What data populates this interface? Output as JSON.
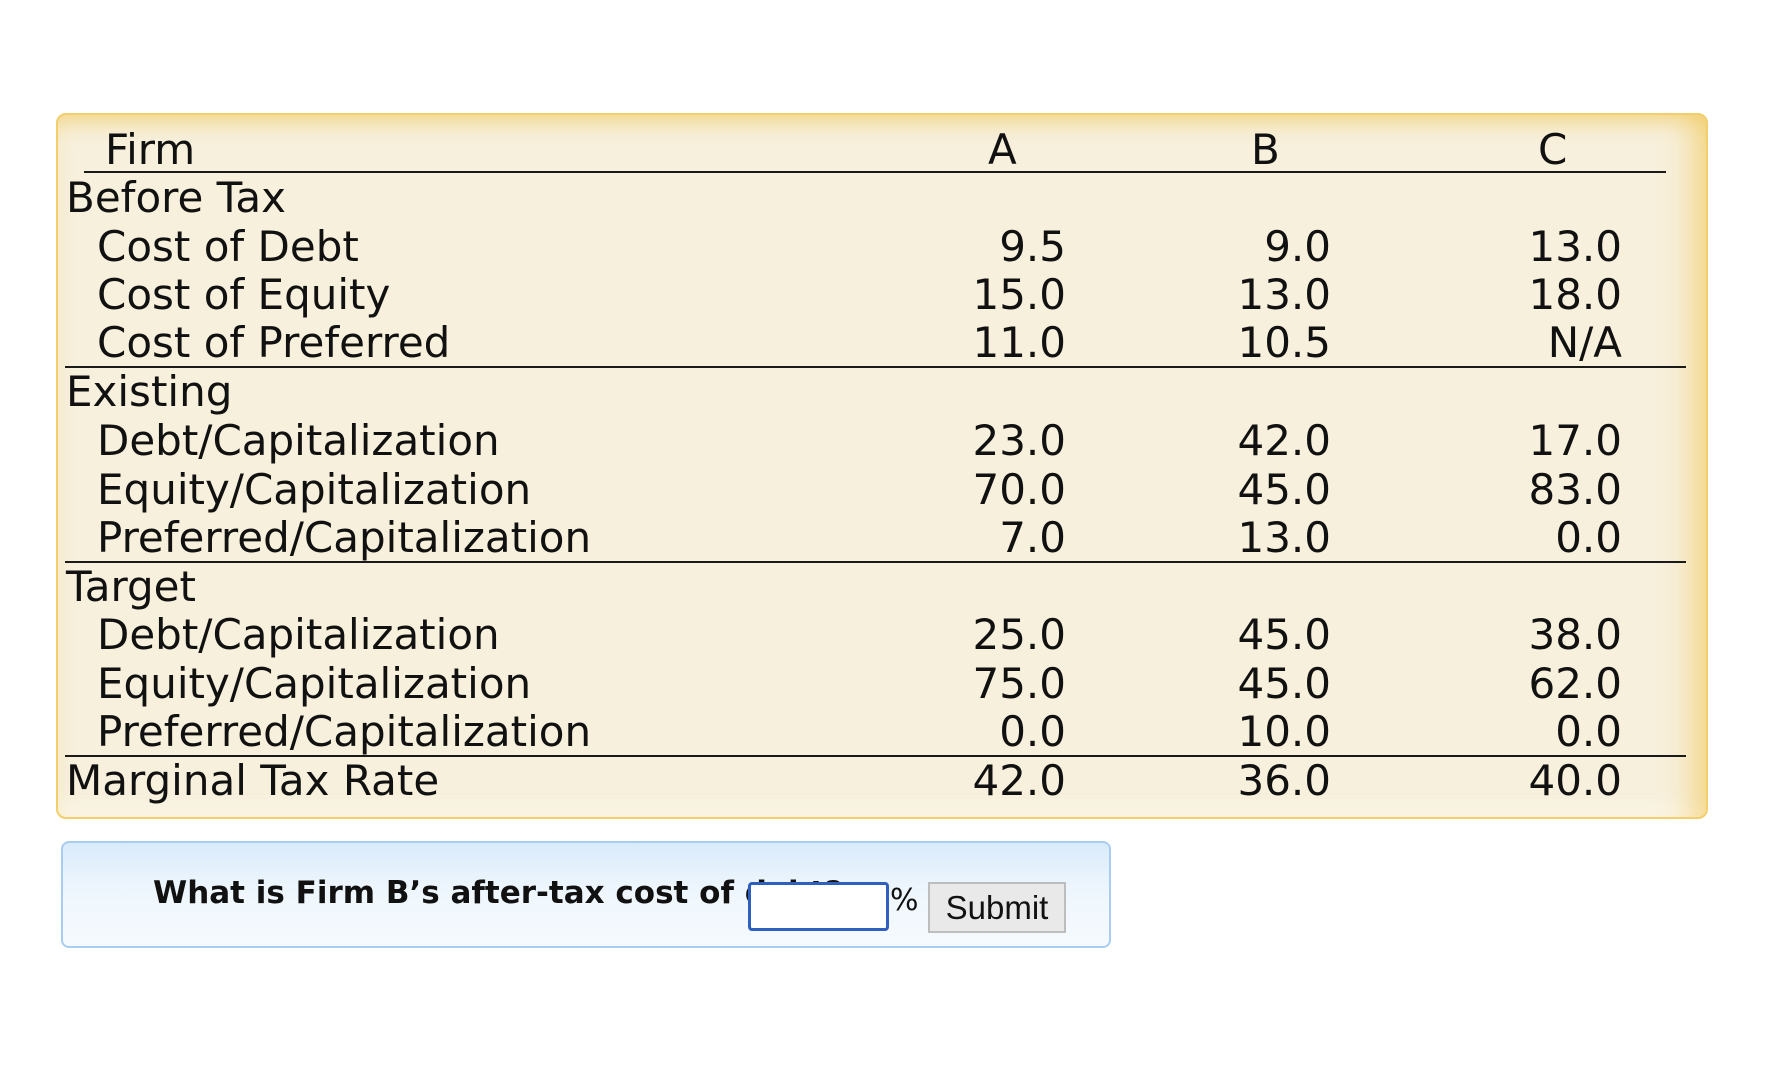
{
  "table": {
    "header": {
      "label": "Firm",
      "a": "A",
      "b": "B",
      "c": "C"
    },
    "sections": {
      "before_tax": {
        "title": "Before Tax",
        "rows": [
          {
            "label": "Cost of Debt",
            "a": "9.5",
            "b": "9.0",
            "c": "13.0"
          },
          {
            "label": "Cost of Equity",
            "a": "15.0",
            "b": "13.0",
            "c": "18.0"
          },
          {
            "label": "Cost of Preferred",
            "a": "11.0",
            "b": "10.5",
            "c": "N/A"
          }
        ]
      },
      "existing": {
        "title": "Existing",
        "rows": [
          {
            "label": "Debt/Capitalization",
            "a": "23.0",
            "b": "42.0",
            "c": "17.0"
          },
          {
            "label": "Equity/Capitalization",
            "a": "70.0",
            "b": "45.0",
            "c": "83.0"
          },
          {
            "label": "Preferred/Capitalization",
            "a": "7.0",
            "b": "13.0",
            "c": "0.0"
          }
        ]
      },
      "target": {
        "title": "Target",
        "rows": [
          {
            "label": "Debt/Capitalization",
            "a": "25.0",
            "b": "45.0",
            "c": "38.0"
          },
          {
            "label": "Equity/Capitalization",
            "a": "75.0",
            "b": "45.0",
            "c": "62.0"
          },
          {
            "label": "Preferred/Capitalization",
            "a": "0.0",
            "b": "10.0",
            "c": "0.0"
          }
        ]
      }
    },
    "marginal_tax_rate": {
      "label": "Marginal Tax Rate",
      "a": "42.0",
      "b": "36.0",
      "c": "40.0"
    }
  },
  "question": {
    "prompt": "What is Firm B’s after-tax cost of debt?",
    "answer_value": "",
    "unit": "%",
    "submit_label": "Submit"
  }
}
